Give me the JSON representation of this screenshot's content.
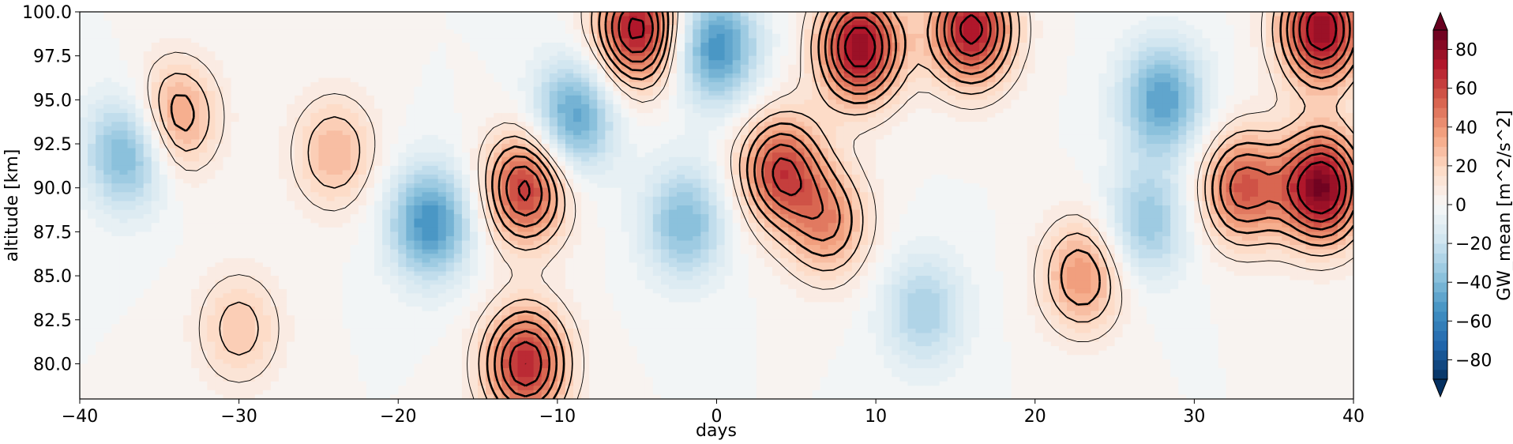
{
  "chart_data": {
    "type": "heatmap",
    "title": "",
    "xlabel": "days",
    "ylabel": "altitude [km]",
    "xlim": [
      -40,
      40
    ],
    "ylim": [
      78,
      100
    ],
    "x_ticks": [
      -40,
      -30,
      -20,
      -10,
      0,
      10,
      20,
      30,
      40
    ],
    "x_tick_labels": [
      "−40",
      "−30",
      "−20",
      "−10",
      "0",
      "10",
      "20",
      "30",
      "40"
    ],
    "y_ticks": [
      80.0,
      82.5,
      85.0,
      87.5,
      90.0,
      92.5,
      95.0,
      97.5,
      100.0
    ],
    "y_tick_labels": [
      "80.0",
      "82.5",
      "85.0",
      "87.5",
      "90.0",
      "92.5",
      "95.0",
      "97.5",
      "100.0"
    ],
    "colorbar": {
      "label": "GW_mean [m^2/s^2]",
      "range": [
        -90,
        90
      ],
      "ticks": [
        -80,
        -60,
        -40,
        -20,
        0,
        20,
        40,
        60,
        80
      ],
      "tick_labels": [
        "−80",
        "−60",
        "−40",
        "−20",
        "0",
        "20",
        "40",
        "60",
        "80"
      ],
      "extend": "both",
      "colormap": "RdBu_r"
    },
    "features": [
      {
        "x": -37,
        "y": 92,
        "value": -45
      },
      {
        "x": -34,
        "y": 94,
        "value": 40
      },
      {
        "x": -24,
        "y": 92,
        "value": 30
      },
      {
        "x": -18,
        "y": 88,
        "value": -55
      },
      {
        "x": -12,
        "y": 90,
        "value": 65
      },
      {
        "x": -12,
        "y": 80,
        "value": 70
      },
      {
        "x": -9,
        "y": 94,
        "value": -50
      },
      {
        "x": -5,
        "y": 99,
        "value": 75
      },
      {
        "x": 4,
        "y": 91,
        "value": 60
      },
      {
        "x": 7,
        "y": 88,
        "value": 40
      },
      {
        "x": 9,
        "y": 98,
        "value": 80
      },
      {
        "x": 0,
        "y": 98,
        "value": -55
      },
      {
        "x": 16,
        "y": 99,
        "value": 75
      },
      {
        "x": 23,
        "y": 85,
        "value": 40
      },
      {
        "x": 28,
        "y": 95,
        "value": -50
      },
      {
        "x": 33,
        "y": 90,
        "value": 55
      },
      {
        "x": 38,
        "y": 90,
        "value": 85
      },
      {
        "x": 38,
        "y": 99,
        "value": 80
      },
      {
        "x": 27,
        "y": 88,
        "value": -35
      },
      {
        "x": -2,
        "y": 88,
        "value": -40
      },
      {
        "x": 13,
        "y": 83,
        "value": -30
      },
      {
        "x": -30,
        "y": 82,
        "value": 25
      }
    ]
  }
}
